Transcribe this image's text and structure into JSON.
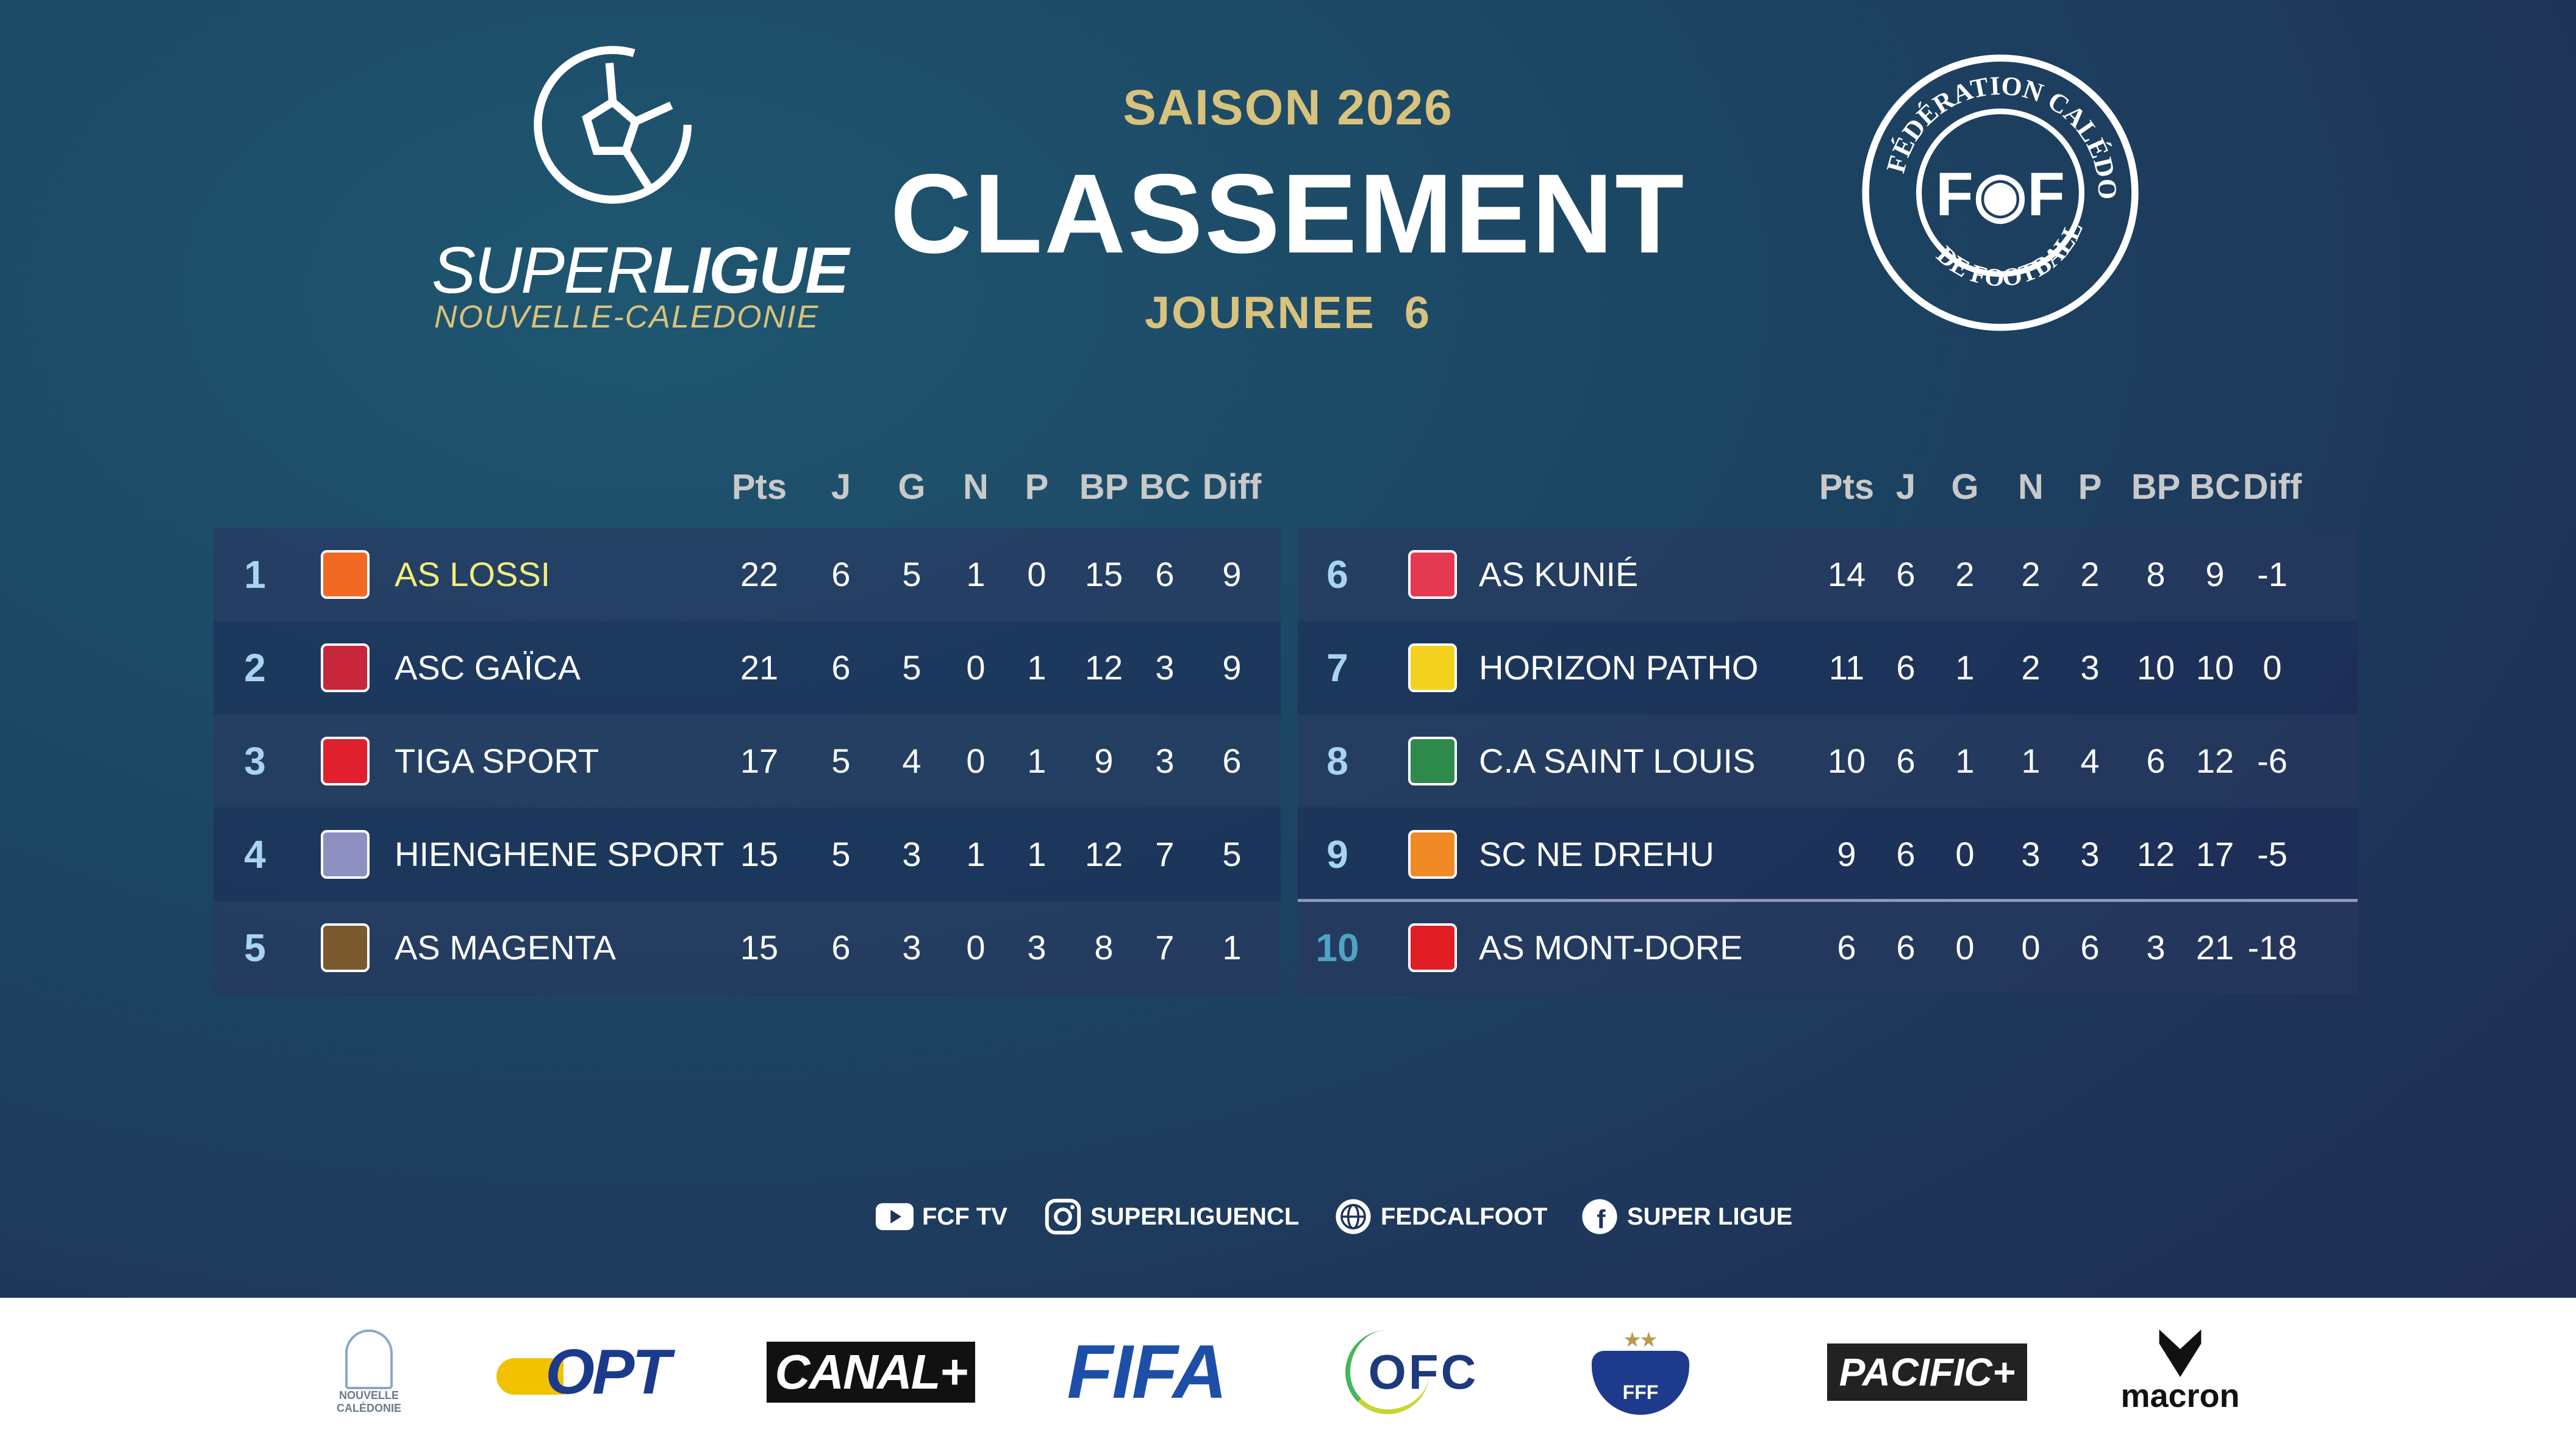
{
  "header": {
    "league_logo_line1": "SUPER",
    "league_logo_line1b": "LIGUE",
    "league_logo_line2": "NOUVELLE-CALEDONIE",
    "season": "SAISON 2026",
    "title": "CLASSEMENT",
    "round": "JOURNEE  6",
    "federation_logo_text": "FÉDÉRATION CALÉDONIENNE DE FOOTBALL"
  },
  "columns": [
    "Pts",
    "J",
    "G",
    "N",
    "P",
    "BP",
    "BC",
    "Diff"
  ],
  "standings": [
    {
      "rank": "1",
      "team": "AS LOSSI",
      "stats": [
        "22",
        "6",
        "5",
        "1",
        "0",
        "15",
        "6",
        "9"
      ],
      "logo_color": "#f06a23"
    },
    {
      "rank": "2",
      "team": "ASC GAÏCA",
      "stats": [
        "21",
        "6",
        "5",
        "0",
        "1",
        "12",
        "3",
        "9"
      ],
      "logo_color": "#c8263a"
    },
    {
      "rank": "3",
      "team": "TIGA SPORT",
      "stats": [
        "17",
        "5",
        "4",
        "0",
        "1",
        "9",
        "3",
        "6"
      ],
      "logo_color": "#e0202c"
    },
    {
      "rank": "4",
      "team": "HIENGHENE SPORT",
      "stats": [
        "15",
        "5",
        "3",
        "1",
        "1",
        "12",
        "7",
        "5"
      ],
      "logo_color": "#8d8fc0"
    },
    {
      "rank": "5",
      "team": "AS MAGENTA",
      "stats": [
        "15",
        "6",
        "3",
        "0",
        "3",
        "8",
        "7",
        "1"
      ],
      "logo_color": "#7a5a2e"
    },
    {
      "rank": "6",
      "team": "AS KUNIÉ",
      "stats": [
        "14",
        "6",
        "2",
        "2",
        "2",
        "8",
        "9",
        "-1"
      ],
      "logo_color": "#e33a52"
    },
    {
      "rank": "7",
      "team": "HORIZON PATHO",
      "stats": [
        "11",
        "6",
        "1",
        "2",
        "3",
        "10",
        "10",
        "0"
      ],
      "logo_color": "#f2d21c"
    },
    {
      "rank": "8",
      "team": "C.A SAINT LOUIS",
      "stats": [
        "10",
        "6",
        "1",
        "1",
        "4",
        "6",
        "12",
        "-6"
      ],
      "logo_color": "#2e8a4a"
    },
    {
      "rank": "9",
      "team": "SC NE DREHU",
      "stats": [
        "9",
        "6",
        "0",
        "3",
        "3",
        "12",
        "17",
        "-5"
      ],
      "logo_color": "#f08a24"
    },
    {
      "rank": "10",
      "team": "AS MONT-DORE",
      "stats": [
        "6",
        "6",
        "0",
        "0",
        "6",
        "3",
        "21",
        "-18"
      ],
      "logo_color": "#e01e24"
    }
  ],
  "social": [
    {
      "icon": "youtube-icon",
      "label": "FCF TV"
    },
    {
      "icon": "instagram-icon",
      "label": "SUPERLIGUENCL"
    },
    {
      "icon": "globe-icon",
      "label": "FEDCALFOOT"
    },
    {
      "icon": "facebook-icon",
      "label": "SUPER LIGUE"
    }
  ],
  "sponsors": [
    "NOUVELLE CALÉDONIE",
    "OPT",
    "CANAL+",
    "FIFA",
    "OFC",
    "FFF",
    "PACIFIC+",
    "macron"
  ],
  "colors": {
    "gold": "#d8c27c",
    "leader": "#f3ec7a",
    "rank": "#a9d4ef",
    "relegation": "#4fa3c4"
  }
}
